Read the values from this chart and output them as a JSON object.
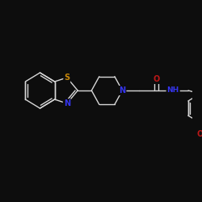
{
  "background_color": "#0d0d0d",
  "bond_color": "#d8d8d8",
  "atom_colors": {
    "S": "#c8880a",
    "N": "#3535ee",
    "O": "#bb1818",
    "C": "#d8d8d8"
  },
  "figsize": [
    2.5,
    2.5
  ],
  "dpi": 100,
  "lw": 1.0,
  "fontsize": 6.5
}
